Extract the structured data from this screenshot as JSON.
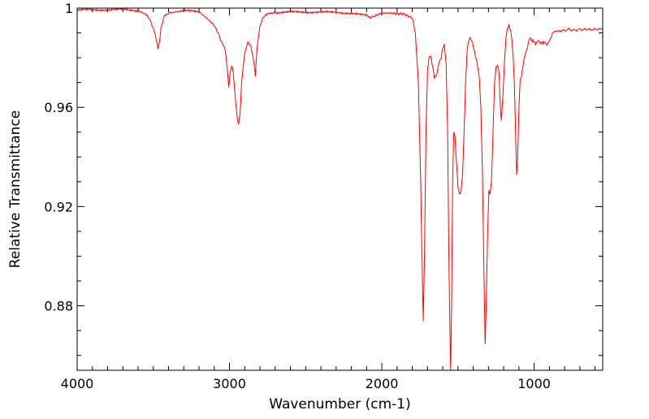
{
  "chart_data": {
    "type": "line",
    "title": "",
    "xlabel": "Wavenumber (cm-1)",
    "ylabel": "Relative Transmittance",
    "x_reversed": true,
    "xlim": [
      4000,
      550
    ],
    "ylim": [
      0.854,
      1.0
    ],
    "grid": false,
    "legend": "none",
    "x_ticks": [
      {
        "value": 4000,
        "label": "4000"
      },
      {
        "value": 3000,
        "label": "3000"
      },
      {
        "value": 2000,
        "label": "2000"
      },
      {
        "value": 1000,
        "label": "1000"
      }
    ],
    "y_ticks": [
      {
        "value": 1.0,
        "label": "1"
      },
      {
        "value": 0.96,
        "label": "0.96"
      },
      {
        "value": 0.92,
        "label": "0.92"
      },
      {
        "value": 0.88,
        "label": "0.88"
      }
    ],
    "series": [
      {
        "color": "#ff0000",
        "points": [
          [
            4000,
            0.9992
          ],
          [
            3900,
            0.9994
          ],
          [
            3800,
            0.9993
          ],
          [
            3700,
            0.9995
          ],
          [
            3600,
            0.999
          ],
          [
            3550,
            0.9975
          ],
          [
            3520,
            0.995
          ],
          [
            3500,
            0.992
          ],
          [
            3480,
            0.987
          ],
          [
            3470,
            0.984
          ],
          [
            3460,
            0.986
          ],
          [
            3450,
            0.992
          ],
          [
            3430,
            0.9965
          ],
          [
            3400,
            0.998
          ],
          [
            3350,
            0.9985
          ],
          [
            3300,
            0.999
          ],
          [
            3200,
            0.9985
          ],
          [
            3150,
            0.996
          ],
          [
            3100,
            0.993
          ],
          [
            3075,
            0.99
          ],
          [
            3050,
            0.986
          ],
          [
            3030,
            0.984
          ],
          [
            3015,
            0.976
          ],
          [
            3005,
            0.968
          ],
          [
            2995,
            0.974
          ],
          [
            2985,
            0.977
          ],
          [
            2975,
            0.974
          ],
          [
            2965,
            0.966
          ],
          [
            2950,
            0.956
          ],
          [
            2940,
            0.953
          ],
          [
            2930,
            0.958
          ],
          [
            2920,
            0.97
          ],
          [
            2900,
            0.982
          ],
          [
            2880,
            0.986
          ],
          [
            2860,
            0.985
          ],
          [
            2840,
            0.978
          ],
          [
            2830,
            0.973
          ],
          [
            2820,
            0.983
          ],
          [
            2800,
            0.993
          ],
          [
            2780,
            0.996
          ],
          [
            2750,
            0.9978
          ],
          [
            2700,
            0.9982
          ],
          [
            2600,
            0.9985
          ],
          [
            2500,
            0.9983
          ],
          [
            2400,
            0.9985
          ],
          [
            2300,
            0.9982
          ],
          [
            2200,
            0.998
          ],
          [
            2100,
            0.997
          ],
          [
            2070,
            0.9962
          ],
          [
            2050,
            0.9968
          ],
          [
            2000,
            0.998
          ],
          [
            1950,
            0.998
          ],
          [
            1900,
            0.9978
          ],
          [
            1850,
            0.9975
          ],
          [
            1800,
            0.996
          ],
          [
            1780,
            0.99
          ],
          [
            1760,
            0.97
          ],
          [
            1745,
            0.93
          ],
          [
            1735,
            0.895
          ],
          [
            1728,
            0.874
          ],
          [
            1720,
            0.9
          ],
          [
            1710,
            0.95
          ],
          [
            1700,
            0.975
          ],
          [
            1690,
            0.98
          ],
          [
            1680,
            0.981
          ],
          [
            1665,
            0.976
          ],
          [
            1655,
            0.972
          ],
          [
            1640,
            0.973
          ],
          [
            1625,
            0.978
          ],
          [
            1610,
            0.98
          ],
          [
            1600,
            0.984
          ],
          [
            1590,
            0.985
          ],
          [
            1578,
            0.978
          ],
          [
            1568,
            0.95
          ],
          [
            1560,
            0.9
          ],
          [
            1553,
            0.87
          ],
          [
            1548,
            0.854
          ],
          [
            1542,
            0.88
          ],
          [
            1535,
            0.93
          ],
          [
            1528,
            0.95
          ],
          [
            1520,
            0.948
          ],
          [
            1510,
            0.938
          ],
          [
            1500,
            0.928
          ],
          [
            1490,
            0.925
          ],
          [
            1480,
            0.926
          ],
          [
            1470,
            0.933
          ],
          [
            1460,
            0.95
          ],
          [
            1450,
            0.97
          ],
          [
            1440,
            0.983
          ],
          [
            1430,
            0.987
          ],
          [
            1420,
            0.988
          ],
          [
            1405,
            0.986
          ],
          [
            1390,
            0.982
          ],
          [
            1375,
            0.978
          ],
          [
            1360,
            0.972
          ],
          [
            1350,
            0.96
          ],
          [
            1340,
            0.935
          ],
          [
            1330,
            0.895
          ],
          [
            1322,
            0.865
          ],
          [
            1315,
            0.88
          ],
          [
            1305,
            0.91
          ],
          [
            1297,
            0.927
          ],
          [
            1290,
            0.925
          ],
          [
            1280,
            0.93
          ],
          [
            1270,
            0.95
          ],
          [
            1260,
            0.97
          ],
          [
            1250,
            0.976
          ],
          [
            1240,
            0.977
          ],
          [
            1230,
            0.974
          ],
          [
            1222,
            0.96
          ],
          [
            1215,
            0.955
          ],
          [
            1205,
            0.965
          ],
          [
            1195,
            0.978
          ],
          [
            1185,
            0.988
          ],
          [
            1175,
            0.992
          ],
          [
            1165,
            0.993
          ],
          [
            1155,
            0.991
          ],
          [
            1145,
            0.987
          ],
          [
            1138,
            0.981
          ],
          [
            1130,
            0.97
          ],
          [
            1122,
            0.95
          ],
          [
            1115,
            0.933
          ],
          [
            1108,
            0.94
          ],
          [
            1100,
            0.96
          ],
          [
            1092,
            0.971
          ],
          [
            1085,
            0.972
          ],
          [
            1075,
            0.976
          ],
          [
            1065,
            0.98
          ],
          [
            1055,
            0.982
          ],
          [
            1045,
            0.984
          ],
          [
            1030,
            0.988
          ],
          [
            1015,
            0.987
          ],
          [
            1000,
            0.9865
          ],
          [
            990,
            0.9855
          ],
          [
            975,
            0.987
          ],
          [
            960,
            0.986
          ],
          [
            945,
            0.986
          ],
          [
            930,
            0.9862
          ],
          [
            915,
            0.985
          ],
          [
            900,
            0.987
          ],
          [
            880,
            0.9895
          ],
          [
            860,
            0.991
          ],
          [
            840,
            0.9905
          ],
          [
            820,
            0.9912
          ],
          [
            800,
            0.9908
          ],
          [
            780,
            0.9915
          ],
          [
            760,
            0.9912
          ],
          [
            740,
            0.991
          ],
          [
            720,
            0.9912
          ],
          [
            700,
            0.9915
          ],
          [
            680,
            0.9913
          ],
          [
            660,
            0.9915
          ],
          [
            640,
            0.9914
          ],
          [
            620,
            0.9913
          ],
          [
            600,
            0.9915
          ],
          [
            580,
            0.9915
          ],
          [
            560,
            0.9915
          ],
          [
            550,
            0.9915
          ]
        ]
      }
    ]
  }
}
